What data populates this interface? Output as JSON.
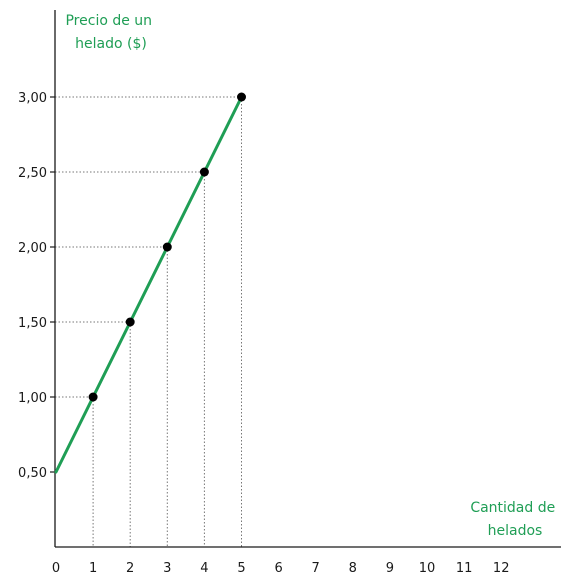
{
  "chart_data": {
    "type": "line",
    "title": "",
    "ylabel_lines": [
      "Precio de un",
      "helado ($)"
    ],
    "xlabel_lines": [
      "Cantidad de",
      "helados"
    ],
    "x_ticks": [
      "0",
      "1",
      "2",
      "3",
      "4",
      "5",
      "6",
      "7",
      "8",
      "9",
      "10",
      "11",
      "12"
    ],
    "y_ticks": [
      {
        "value": 0.5,
        "label": "0,50"
      },
      {
        "value": 1.0,
        "label": "1,00"
      },
      {
        "value": 1.5,
        "label": "1,50"
      },
      {
        "value": 2.0,
        "label": "2,00"
      },
      {
        "value": 2.5,
        "label": "2,50"
      },
      {
        "value": 3.0,
        "label": "3,00"
      }
    ],
    "xlim": [
      0,
      12
    ],
    "line": {
      "x": [
        0,
        5
      ],
      "y": [
        0.5,
        3.0
      ]
    },
    "points": [
      {
        "x": 1,
        "y": 1.0
      },
      {
        "x": 2,
        "y": 1.5
      },
      {
        "x": 3,
        "y": 2.0
      },
      {
        "x": 4,
        "y": 2.5
      },
      {
        "x": 5,
        "y": 3.0
      }
    ],
    "guides": "dotted",
    "colors": {
      "line": "#1f9e55",
      "label": "#1f9e55",
      "point": "#000000",
      "axis": "#1a1a1a",
      "guide": "#777777"
    }
  }
}
